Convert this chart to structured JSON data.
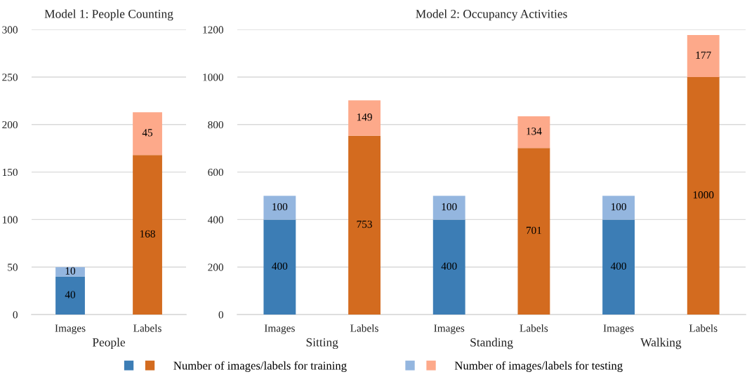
{
  "chart_data": [
    {
      "type": "bar",
      "title": "Model 1: People Counting",
      "xlabel": "People",
      "categories": [
        "Images",
        "Labels"
      ],
      "stacked": true,
      "series": [
        {
          "colors": [
            "#3c7db5",
            "#d36b1f"
          ],
          "values": [
            40,
            168
          ]
        },
        {
          "colors": [
            "#94b6df",
            "#fda98a"
          ],
          "values": [
            10,
            45
          ]
        }
      ],
      "ylim": [
        0,
        300
      ],
      "yticks": [
        0,
        50,
        100,
        150,
        200,
        250,
        300
      ],
      "grid": "y",
      "data_labels": true
    },
    {
      "type": "bar",
      "title": "Model 2: Occupancy Activities",
      "categories": [
        "Images",
        "Labels",
        "Images",
        "Labels",
        "Images",
        "Labels"
      ],
      "annotations": [
        "Sitting",
        "Standing",
        "Walking"
      ],
      "stacked": true,
      "series": [
        {
          "name": "Number of images/labels for training",
          "colors": [
            "#3c7db5",
            "#d36b1f",
            "#3c7db5",
            "#d36b1f",
            "#3c7db5",
            "#d36b1f"
          ],
          "values": [
            400,
            753,
            400,
            701,
            400,
            1000
          ]
        },
        {
          "name": "Number of images/labels for testing",
          "colors": [
            "#94b6df",
            "#fda98a",
            "#94b6df",
            "#fda98a",
            "#94b6df",
            "#fda98a"
          ],
          "values": [
            100,
            149,
            100,
            134,
            100,
            177
          ]
        }
      ],
      "ylim": [
        0,
        1200
      ],
      "yticks": [
        0,
        200,
        400,
        600,
        800,
        1000,
        1200
      ],
      "grid": "y",
      "data_labels": true,
      "legend": "bottom"
    }
  ]
}
